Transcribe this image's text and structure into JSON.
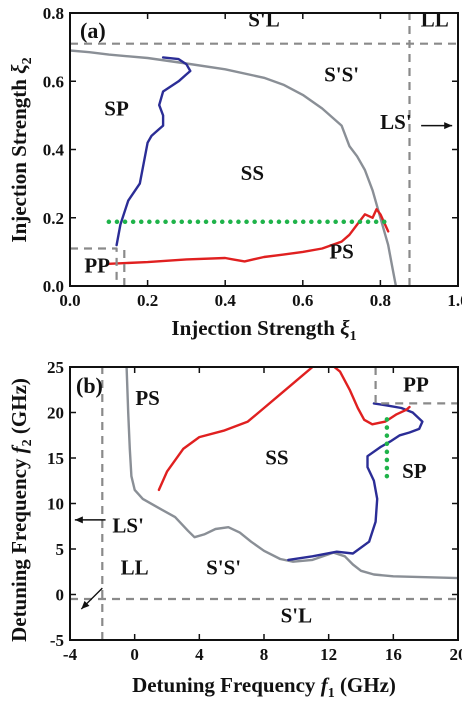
{
  "colors": {
    "gray": "#8a8f96",
    "blue": "#2b2d96",
    "red": "#e02020",
    "green": "#1fb34a",
    "dashed": "#8a8a8a"
  },
  "chart_data": [
    {
      "type": "line",
      "panel_label": "(a)",
      "xlabel": "Injection Strength",
      "xlabel_symbol": "ξ",
      "xlabel_sub": "1",
      "ylabel": "Injection Strength",
      "ylabel_symbol": "ξ",
      "ylabel_sub": "2",
      "xlim": [
        0.0,
        1.0
      ],
      "ylim": [
        0.0,
        0.8
      ],
      "xticks": [
        "0.0",
        "0.2",
        "0.4",
        "0.6",
        "0.8",
        "1.0"
      ],
      "yticks": [
        "0.0",
        "0.2",
        "0.4",
        "0.6",
        "0.8"
      ],
      "xtick_values": [
        0,
        0.2,
        0.4,
        0.6,
        0.8,
        1.0
      ],
      "ytick_values": [
        0,
        0.2,
        0.4,
        0.6,
        0.8
      ],
      "series": [
        {
          "color": "gray",
          "style": "solid",
          "x": [
            0.0,
            0.05,
            0.1,
            0.2,
            0.3,
            0.4,
            0.5,
            0.55,
            0.6,
            0.65,
            0.7,
            0.72,
            0.74,
            0.76,
            0.78,
            0.8,
            0.82,
            0.83,
            0.84
          ],
          "y": [
            0.69,
            0.685,
            0.678,
            0.668,
            0.652,
            0.635,
            0.61,
            0.59,
            0.56,
            0.52,
            0.47,
            0.41,
            0.38,
            0.34,
            0.28,
            0.2,
            0.12,
            0.06,
            0.0
          ]
        },
        {
          "color": "blue",
          "style": "solid",
          "x": [
            0.12,
            0.13,
            0.15,
            0.18,
            0.19,
            0.2,
            0.21,
            0.22,
            0.24,
            0.24,
            0.23,
            0.24,
            0.28,
            0.3,
            0.31,
            0.3,
            0.28,
            0.24
          ],
          "y": [
            0.12,
            0.18,
            0.25,
            0.3,
            0.36,
            0.42,
            0.44,
            0.45,
            0.47,
            0.5,
            0.53,
            0.57,
            0.6,
            0.62,
            0.63,
            0.65,
            0.665,
            0.67
          ]
        },
        {
          "color": "red",
          "style": "solid",
          "x": [
            0.1,
            0.2,
            0.3,
            0.4,
            0.42,
            0.45,
            0.5,
            0.55,
            0.6,
            0.65,
            0.7,
            0.72,
            0.74,
            0.76,
            0.78,
            0.79,
            0.8,
            0.82
          ],
          "y": [
            0.065,
            0.07,
            0.078,
            0.082,
            0.078,
            0.072,
            0.085,
            0.092,
            0.1,
            0.11,
            0.13,
            0.15,
            0.18,
            0.21,
            0.2,
            0.225,
            0.21,
            0.16
          ]
        },
        {
          "color": "green",
          "style": "dotted",
          "x": [
            0.1,
            0.82
          ],
          "y": [
            0.188,
            0.188
          ]
        },
        {
          "color": "dashed",
          "style": "dashed",
          "x": [
            0.0,
            1.0
          ],
          "y": [
            0.71,
            0.71
          ]
        },
        {
          "color": "dashed",
          "style": "dashed",
          "x": [
            0.875,
            0.875
          ],
          "y": [
            0.0,
            0.8
          ]
        },
        {
          "color": "dashed",
          "style": "dashed",
          "x": [
            0.0,
            0.12,
            0.12
          ],
          "y": [
            0.11,
            0.11,
            0.0
          ]
        },
        {
          "color": "dashed",
          "style": "dashed",
          "x": [
            0.14,
            0.14
          ],
          "y": [
            0.0,
            0.11
          ]
        }
      ],
      "region_labels": [
        {
          "text": "S'L",
          "x": 0.5,
          "y": 0.76
        },
        {
          "text": "LL",
          "x": 0.94,
          "y": 0.76
        },
        {
          "text": "SP",
          "x": 0.12,
          "y": 0.5
        },
        {
          "text": "S'S'",
          "x": 0.7,
          "y": 0.6
        },
        {
          "text": "LS'",
          "x": 0.84,
          "y": 0.46
        },
        {
          "text": "SS",
          "x": 0.47,
          "y": 0.31
        },
        {
          "text": "PS",
          "x": 0.7,
          "y": 0.08
        },
        {
          "text": "PP",
          "x": 0.07,
          "y": 0.04
        }
      ],
      "arrows": [
        {
          "x1": 0.905,
          "y1": 0.47,
          "x2": 0.985,
          "y2": 0.47
        }
      ]
    },
    {
      "type": "line",
      "panel_label": "(b)",
      "xlabel": "Detuning Frequency",
      "xlabel_symbol": "f",
      "xlabel_sub": "1",
      "xlabel_unit": " (GHz)",
      "ylabel": "Detuning Frequency",
      "ylabel_symbol": "f",
      "ylabel_sub": "2",
      "ylabel_unit": " (GHz)",
      "xlim": [
        -4,
        20
      ],
      "ylim": [
        -5,
        25
      ],
      "xticks": [
        "-4",
        "0",
        "4",
        "8",
        "12",
        "16",
        "20"
      ],
      "yticks": [
        "-5",
        "0",
        "5",
        "10",
        "15",
        "20",
        "25"
      ],
      "xtick_values": [
        -4,
        0,
        4,
        8,
        12,
        16,
        20
      ],
      "ytick_values": [
        -5,
        0,
        5,
        10,
        15,
        20,
        25
      ],
      "series": [
        {
          "color": "gray",
          "style": "solid",
          "x": [
            -0.5,
            -0.4,
            -0.3,
            -0.2,
            0.0,
            0.5,
            1.5,
            2.5,
            3.3,
            3.7,
            4.3,
            5.0,
            5.8,
            6.5,
            7.2,
            8.0,
            9.0,
            9.8,
            11.0,
            12.3,
            13.0,
            13.5,
            14.0,
            14.8,
            16.0,
            18.0,
            20.0
          ],
          "y": [
            25.0,
            20.0,
            16.0,
            13.0,
            11.5,
            10.5,
            9.5,
            8.5,
            7.0,
            6.3,
            6.6,
            7.2,
            7.4,
            6.8,
            5.8,
            4.8,
            3.9,
            3.6,
            3.8,
            4.6,
            4.2,
            3.3,
            2.6,
            2.2,
            2.0,
            1.9,
            1.8
          ]
        },
        {
          "color": "blue",
          "style": "solid",
          "x": [
            9.5,
            11.0,
            12.5,
            13.5,
            14.5,
            14.9,
            15.0,
            14.8,
            14.4,
            14.4,
            15.2,
            15.8,
            16.4,
            17.0,
            17.6,
            17.8,
            17.2,
            16.5,
            15.5,
            14.8
          ],
          "y": [
            3.8,
            4.2,
            4.7,
            4.5,
            5.8,
            8.0,
            10.5,
            12.5,
            14.0,
            15.2,
            16.2,
            16.8,
            17.5,
            17.8,
            18.2,
            19.0,
            20.0,
            20.5,
            20.8,
            21.0
          ]
        },
        {
          "color": "red",
          "style": "solid",
          "x": [
            1.5,
            2.0,
            3.0,
            4.0,
            5.5,
            7.0,
            8.0,
            9.0,
            10.0,
            11.0,
            12.0,
            12.7,
            13.3,
            13.8,
            14.2,
            14.7,
            15.5,
            16.2,
            16.8,
            17.0
          ],
          "y": [
            11.5,
            13.5,
            16.0,
            17.3,
            18.0,
            19.0,
            20.5,
            22.0,
            23.5,
            25.0,
            25.5,
            24.5,
            22.5,
            20.5,
            19.2,
            18.7,
            19.0,
            19.8,
            20.3,
            20.6
          ]
        },
        {
          "color": "green",
          "style": "dotted",
          "x": [
            15.6,
            15.6
          ],
          "y": [
            13.0,
            20.0
          ]
        },
        {
          "color": "dashed",
          "style": "dashed",
          "x": [
            -4.0,
            20.0
          ],
          "y": [
            -0.5,
            -0.5
          ]
        },
        {
          "color": "dashed",
          "style": "dashed",
          "x": [
            -2.0,
            -2.0
          ],
          "y": [
            -5.0,
            25.0
          ]
        },
        {
          "color": "dashed",
          "style": "dashed",
          "x": [
            14.9,
            14.9,
            20.0
          ],
          "y": [
            25.0,
            21.0,
            21.0
          ]
        }
      ],
      "region_labels": [
        {
          "text": "PS",
          "x": 0.8,
          "y": 20.8
        },
        {
          "text": "PP",
          "x": 17.4,
          "y": 22.3
        },
        {
          "text": "SS",
          "x": 8.8,
          "y": 14.3
        },
        {
          "text": "SP",
          "x": 17.3,
          "y": 12.8
        },
        {
          "text": "LS'",
          "x": -0.4,
          "y": 6.8
        },
        {
          "text": "LL",
          "x": 0.0,
          "y": 2.2
        },
        {
          "text": "S'S'",
          "x": 5.5,
          "y": 2.2
        },
        {
          "text": "S'L",
          "x": 10.0,
          "y": -3.1
        }
      ],
      "arrows": [
        {
          "x1": -1.8,
          "y1": 8.2,
          "x2": -3.7,
          "y2": 8.2
        },
        {
          "x1": -2.0,
          "y1": 0.7,
          "x2": -3.3,
          "y2": -1.6
        }
      ]
    }
  ]
}
